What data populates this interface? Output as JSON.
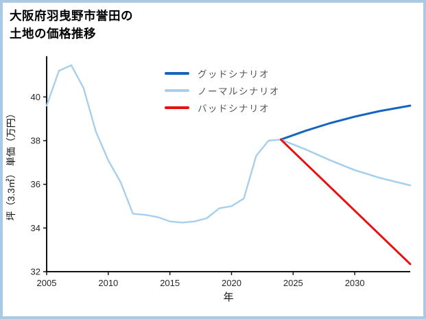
{
  "page": {
    "border_color": "#aac9e4",
    "background": "#ffffff"
  },
  "header": {
    "title_line1": "大阪府羽曳野市誉田の",
    "title_line2": "土地の価格推移"
  },
  "chart_data": {
    "type": "line",
    "title": "大阪府羽曳野市誉田の土地の価格推移",
    "xlabel": "年",
    "ylabel": "坪（3.3㎡） 単価（万円）",
    "xlim": [
      2005,
      2034.5
    ],
    "ylim": [
      32,
      41.8
    ],
    "xticks": [
      2005,
      2010,
      2015,
      2020,
      2025,
      2030
    ],
    "yticks": [
      32,
      34,
      36,
      38,
      40
    ],
    "grid": false,
    "legend_position": "upper-center-inside",
    "series": [
      {
        "id": "history",
        "name": "",
        "in_legend": false,
        "color": "#a6cfee",
        "width": 2.4,
        "x": [
          2005,
          2006,
          2007,
          2008,
          2009,
          2010,
          2011,
          2012,
          2013,
          2014,
          2015,
          2016,
          2017,
          2018,
          2019,
          2020,
          2021,
          2022,
          2023,
          2024
        ],
        "values": [
          39.6,
          41.2,
          41.45,
          40.4,
          38.4,
          37.1,
          36.1,
          34.65,
          34.6,
          34.5,
          34.3,
          34.25,
          34.3,
          34.45,
          34.9,
          35.0,
          35.35,
          37.3,
          38.0,
          38.05
        ]
      },
      {
        "id": "good",
        "name": "グッドシナリオ",
        "in_legend": true,
        "color": "#1565c0",
        "width": 3,
        "x": [
          2024,
          2026,
          2028,
          2030,
          2032,
          2034.5
        ],
        "values": [
          38.05,
          38.45,
          38.8,
          39.1,
          39.35,
          39.6
        ]
      },
      {
        "id": "normal",
        "name": "ノーマルシナリオ",
        "in_legend": true,
        "color": "#a6cfee",
        "width": 2.6,
        "x": [
          2024,
          2026,
          2028,
          2030,
          2032,
          2034.5
        ],
        "values": [
          38.05,
          37.6,
          37.1,
          36.65,
          36.3,
          35.95
        ]
      },
      {
        "id": "bad",
        "name": "バッドシナリオ",
        "in_legend": true,
        "color": "#ea1010",
        "width": 3,
        "x": [
          2024,
          2034.5
        ],
        "values": [
          38.05,
          32.35
        ]
      }
    ]
  }
}
